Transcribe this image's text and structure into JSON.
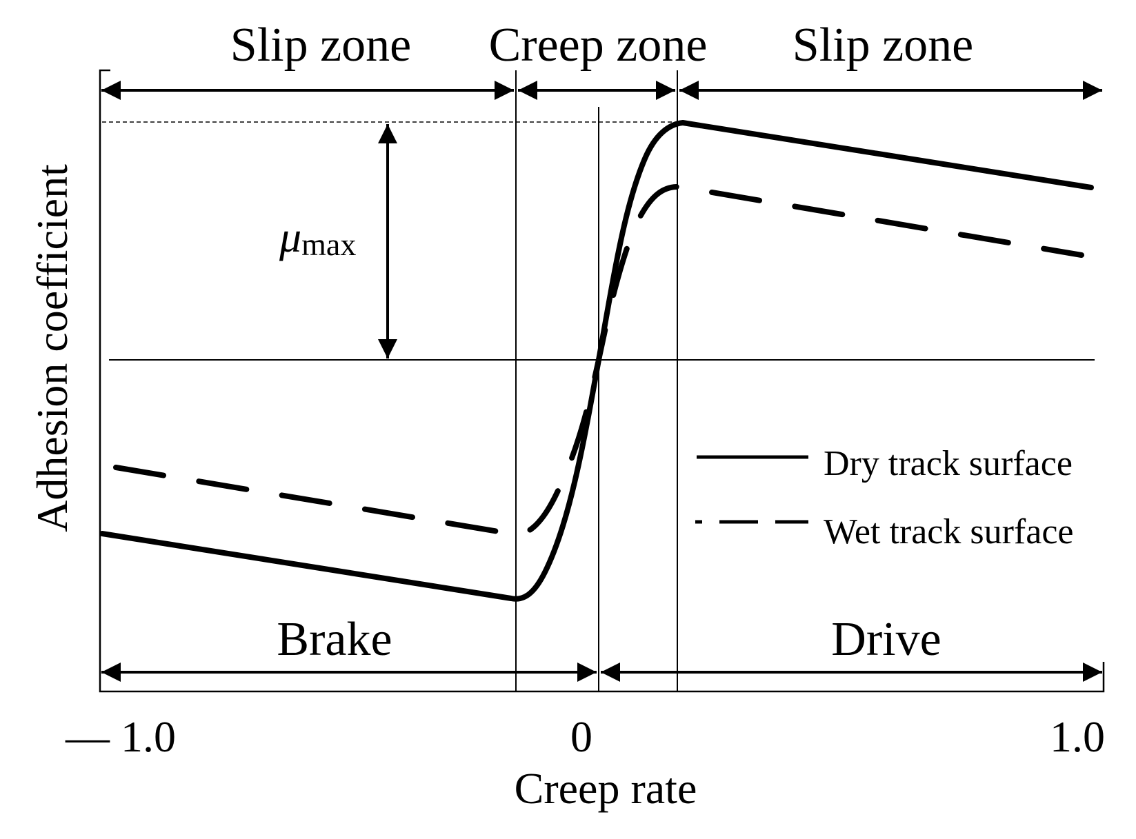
{
  "zones": {
    "slip_left": "Slip zone",
    "creep": "Creep zone",
    "slip_right": "Slip zone"
  },
  "modes": {
    "brake": "Brake",
    "drive": "Drive"
  },
  "mu": {
    "symbol": "μ",
    "subscript": "max"
  },
  "axes": {
    "xlabel": "Creep rate",
    "ylabel": "Adhesion coefficient",
    "ticks": [
      "— 1.0",
      "0",
      "1.0"
    ]
  },
  "legend": {
    "dry": "Dry track surface",
    "wet": "Wet track surface"
  }
}
